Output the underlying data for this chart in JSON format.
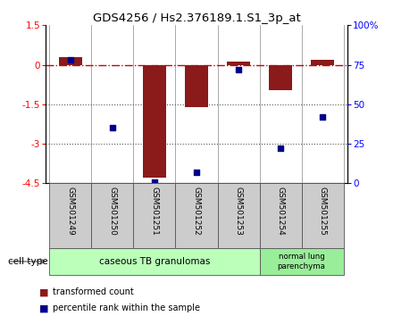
{
  "title": "GDS4256 / Hs2.376189.1.S1_3p_at",
  "samples": [
    "GSM501249",
    "GSM501250",
    "GSM501251",
    "GSM501252",
    "GSM501253",
    "GSM501254",
    "GSM501255"
  ],
  "transformed_count": [
    0.3,
    -0.02,
    -4.3,
    -1.62,
    0.13,
    -0.95,
    0.18
  ],
  "percentile_rank": [
    78,
    35,
    1,
    7,
    72,
    22,
    42
  ],
  "ylim_left": [
    -4.5,
    1.5
  ],
  "yticks_left": [
    1.5,
    0.0,
    -1.5,
    -3.0,
    -4.5
  ],
  "ylim_right": [
    0,
    100
  ],
  "yticks_right": [
    0,
    25,
    50,
    75,
    100
  ],
  "yticklabels_right": [
    "0",
    "25",
    "50",
    "75",
    "100%"
  ],
  "bar_color": "#8B1A1A",
  "dot_color": "#00008B",
  "hline_color": "#CC0000",
  "dotted_line_color": "#555555",
  "group1_label": "caseous TB granulomas",
  "group2_label": "normal lung\nparenchyma",
  "group1_color": "#bbffbb",
  "group2_color": "#99ee99",
  "sample_box_color": "#cccccc",
  "cell_type_label": "cell type",
  "legend_bar_label": "transformed count",
  "legend_dot_label": "percentile rank within the sample",
  "bar_width": 0.55
}
